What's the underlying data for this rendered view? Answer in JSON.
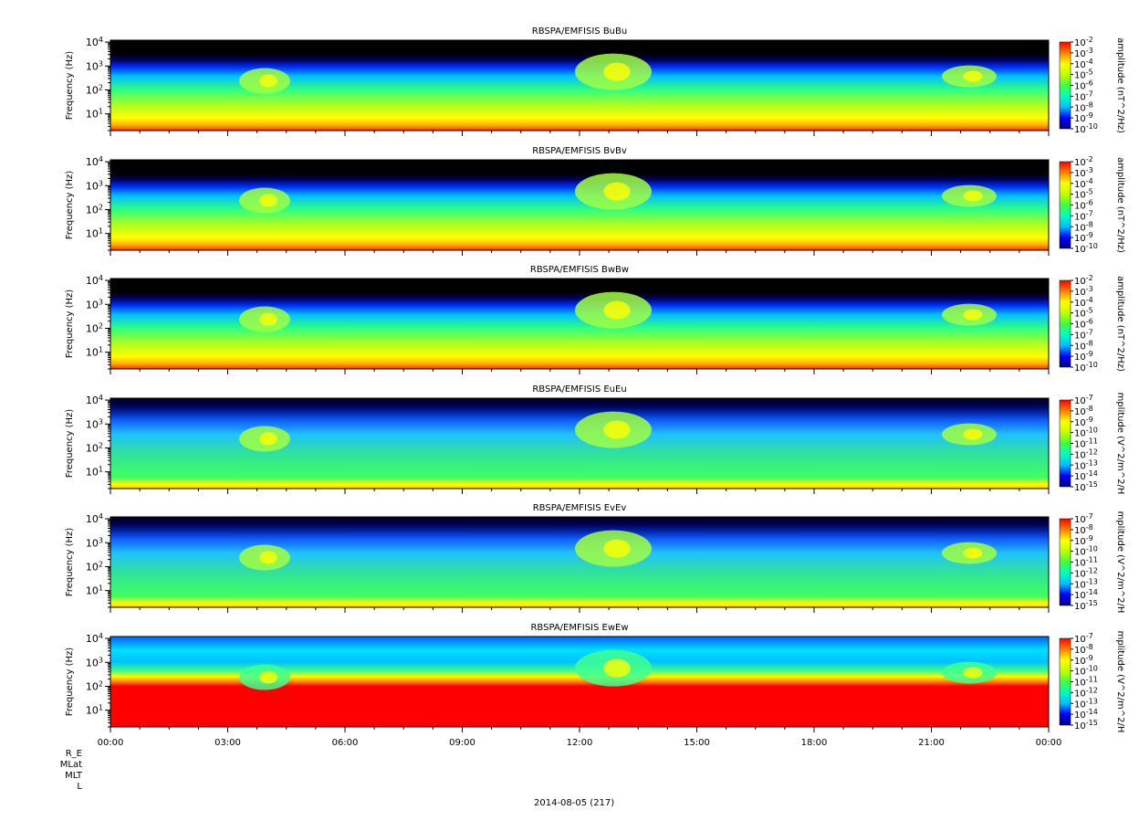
{
  "chart_data": [
    {
      "type": "heatmap",
      "title": "RBSPA/EMFISIS  BuBu",
      "ylabel": "Frequency (Hz)",
      "yscale": "log",
      "ylim": [
        2,
        12000
      ],
      "yticks": [
        "10^1",
        "10^2",
        "10^3",
        "10^4"
      ],
      "colorbar_label": "amplitude (nT^2/Hz)",
      "colorbar_ticks": [
        "10^-2",
        "10^-3",
        "10^-4",
        "10^-5",
        "10^-6",
        "10^-7",
        "10^-8",
        "10^-9",
        "10^-10"
      ],
      "colorbar_range": [
        -10,
        -2
      ],
      "colormap": [
        "#00007f",
        "#0000ff",
        "#00bfff",
        "#00ffbf",
        "#40ff40",
        "#c0ff00",
        "#ffff00",
        "#ff8000",
        "#ff0000"
      ],
      "background": "#000000"
    },
    {
      "type": "heatmap",
      "title": "RBSPA/EMFISIS  BvBv",
      "ylabel": "Frequency (Hz)",
      "yscale": "log",
      "ylim": [
        2,
        12000
      ],
      "yticks": [
        "10^1",
        "10^2",
        "10^3",
        "10^4"
      ],
      "colorbar_label": "amplitude (nT^2/Hz)",
      "colorbar_ticks": [
        "10^-2",
        "10^-3",
        "10^-4",
        "10^-5",
        "10^-6",
        "10^-7",
        "10^-8",
        "10^-9",
        "10^-10"
      ],
      "colorbar_range": [
        -10,
        -2
      ],
      "colormap": [
        "#00007f",
        "#0000ff",
        "#00bfff",
        "#00ffbf",
        "#40ff40",
        "#c0ff00",
        "#ffff00",
        "#ff8000",
        "#ff0000"
      ],
      "background": "#000000"
    },
    {
      "type": "heatmap",
      "title": "RBSPA/EMFISIS  BwBw",
      "ylabel": "Frequency (Hz)",
      "yscale": "log",
      "ylim": [
        2,
        12000
      ],
      "yticks": [
        "10^1",
        "10^2",
        "10^3",
        "10^4"
      ],
      "colorbar_label": "amplitude (nT^2/Hz)",
      "colorbar_ticks": [
        "10^-2",
        "10^-3",
        "10^-4",
        "10^-5",
        "10^-6",
        "10^-7",
        "10^-8",
        "10^-9",
        "10^-10"
      ],
      "colorbar_range": [
        -10,
        -2
      ],
      "colormap": [
        "#00007f",
        "#0000ff",
        "#00bfff",
        "#00ffbf",
        "#40ff40",
        "#c0ff00",
        "#ffff00",
        "#ff8000",
        "#ff0000"
      ],
      "background": "#000000"
    },
    {
      "type": "heatmap",
      "title": "RBSPA/EMFISIS  EuEu",
      "ylabel": "Frequency (Hz)",
      "yscale": "log",
      "ylim": [
        2,
        12000
      ],
      "yticks": [
        "10^1",
        "10^2",
        "10^3",
        "10^4"
      ],
      "colorbar_label": "mplitude (V^2/m^2/H",
      "colorbar_ticks": [
        "10^-7",
        "10^-8",
        "10^-9",
        "10^-10",
        "10^-11",
        "10^-12",
        "10^-13",
        "10^-14",
        "10^-15"
      ],
      "colorbar_range": [
        -15,
        -7
      ],
      "colormap": [
        "#00007f",
        "#0000ff",
        "#00bfff",
        "#00ffbf",
        "#40ff40",
        "#c0ff00",
        "#ffff00",
        "#ff8000",
        "#ff0000"
      ],
      "background": "#000000"
    },
    {
      "type": "heatmap",
      "title": "RBSPA/EMFISIS  EvEv",
      "ylabel": "Frequency (Hz)",
      "yscale": "log",
      "ylim": [
        2,
        12000
      ],
      "yticks": [
        "10^1",
        "10^2",
        "10^3",
        "10^4"
      ],
      "colorbar_label": "mplitude (V^2/m^2/H",
      "colorbar_ticks": [
        "10^-7",
        "10^-8",
        "10^-9",
        "10^-10",
        "10^-11",
        "10^-12",
        "10^-13",
        "10^-14",
        "10^-15"
      ],
      "colorbar_range": [
        -15,
        -7
      ],
      "colormap": [
        "#00007f",
        "#0000ff",
        "#00bfff",
        "#00ffbf",
        "#40ff40",
        "#c0ff00",
        "#ffff00",
        "#ff8000",
        "#ff0000"
      ],
      "background": "#000000"
    },
    {
      "type": "heatmap",
      "title": "RBSPA/EMFISIS  EwEw",
      "ylabel": "Frequency (Hz)",
      "yscale": "log",
      "ylim": [
        2,
        12000
      ],
      "yticks": [
        "10^1",
        "10^2",
        "10^3",
        "10^4"
      ],
      "colorbar_label": "mplitude (V^2/m^2/H",
      "colorbar_ticks": [
        "10^-7",
        "10^-8",
        "10^-9",
        "10^-10",
        "10^-11",
        "10^-12",
        "10^-13",
        "10^-14",
        "10^-15"
      ],
      "colorbar_range": [
        -15,
        -7
      ],
      "colormap": [
        "#00007f",
        "#0000ff",
        "#00bfff",
        "#00ffbf",
        "#40ff40",
        "#c0ff00",
        "#ffff00",
        "#ff8000",
        "#ff0000"
      ],
      "background": "#000000"
    }
  ],
  "x_axis": {
    "tick_labels": [
      "00:00",
      "03:00",
      "06:00",
      "09:00",
      "12:00",
      "15:00",
      "18:00",
      "21:00",
      "00:00"
    ],
    "range_hours": [
      0,
      24
    ],
    "minor_per_major": 4
  },
  "ephemeris_labels": [
    "R_E",
    "MLat",
    "MLT",
    "L"
  ],
  "date_label": "2014-08-05 (217)"
}
